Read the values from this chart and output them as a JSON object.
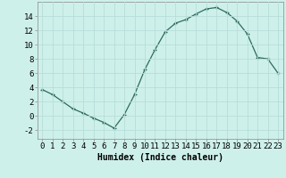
{
  "x": [
    0,
    1,
    2,
    3,
    4,
    5,
    6,
    7,
    8,
    9,
    10,
    11,
    12,
    13,
    14,
    15,
    16,
    17,
    18,
    19,
    20,
    21,
    22,
    23
  ],
  "y": [
    3.7,
    3.0,
    2.0,
    1.0,
    0.4,
    -0.3,
    -0.9,
    -1.7,
    0.2,
    3.0,
    6.5,
    9.3,
    11.8,
    13.0,
    13.5,
    14.3,
    15.0,
    15.2,
    14.5,
    13.3,
    11.5,
    8.2,
    8.0,
    6.0
  ],
  "line_color": "#2e6b5e",
  "marker": "+",
  "background_color": "#cef0eb",
  "grid_color": "#b8ddd8",
  "xlabel": "Humidex (Indice chaleur)",
  "xlim": [
    -0.5,
    23.5
  ],
  "ylim": [
    -3.2,
    16.0
  ],
  "yticks": [
    -2,
    0,
    2,
    4,
    6,
    8,
    10,
    12,
    14
  ],
  "xticks": [
    0,
    1,
    2,
    3,
    4,
    5,
    6,
    7,
    8,
    9,
    10,
    11,
    12,
    13,
    14,
    15,
    16,
    17,
    18,
    19,
    20,
    21,
    22,
    23
  ],
  "label_fontsize": 7,
  "tick_fontsize": 6.5
}
